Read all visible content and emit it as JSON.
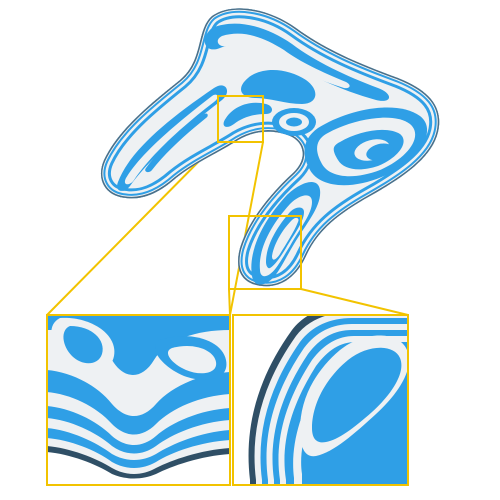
{
  "figure": {
    "palette": {
      "background": "#ffffff",
      "band_blue": "#2f9fe6",
      "band_light": "#eef1f3",
      "outline_dark": "#2f4f66",
      "highlight_frame": "#f2c300"
    },
    "callouts": [
      {
        "name": "callout-saddle",
        "label": ""
      },
      {
        "name": "callout-tip",
        "label": ""
      }
    ]
  }
}
